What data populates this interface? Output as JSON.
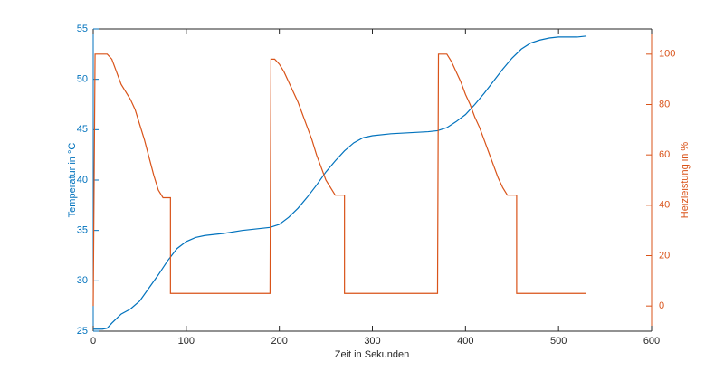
{
  "chart_data": {
    "type": "line",
    "xlabel": "Zeit in Sekunden",
    "ylabel": "Temperatur in °C",
    "y2label": "Heizleistung in %",
    "xlim": [
      0,
      600
    ],
    "xticks": [
      0,
      100,
      200,
      300,
      400,
      500,
      600
    ],
    "ylim": [
      25,
      55
    ],
    "yticks": [
      25,
      30,
      35,
      40,
      45,
      50,
      55
    ],
    "y2lim": [
      -10,
      110
    ],
    "y2ticks": [
      0,
      20,
      40,
      60,
      80,
      100
    ],
    "grid": false,
    "series": [
      {
        "color": "#0072BD",
        "x": [
          0,
          10,
          15,
          20,
          30,
          40,
          50,
          60,
          70,
          80,
          90,
          100,
          110,
          120,
          140,
          160,
          180,
          190,
          200,
          210,
          220,
          230,
          240,
          250,
          260,
          270,
          280,
          290,
          300,
          320,
          340,
          360,
          370,
          380,
          390,
          400,
          410,
          420,
          430,
          440,
          450,
          460,
          470,
          480,
          490,
          500,
          520,
          530
        ],
        "values": [
          25.2,
          25.2,
          25.3,
          25.8,
          26.7,
          27.2,
          28.0,
          29.3,
          30.6,
          32.0,
          33.2,
          33.9,
          34.3,
          34.5,
          34.7,
          35.0,
          35.2,
          35.3,
          35.6,
          36.3,
          37.2,
          38.3,
          39.5,
          40.8,
          41.9,
          42.9,
          43.7,
          44.2,
          44.4,
          44.6,
          44.7,
          44.8,
          44.9,
          45.2,
          45.8,
          46.5,
          47.5,
          48.6,
          49.8,
          51.0,
          52.1,
          53.0,
          53.6,
          53.9,
          54.1,
          54.2,
          54.2,
          54.3
        ]
      },
      {
        "color": "#D95319",
        "axis": "y2",
        "x": [
          0,
          2,
          15,
          20,
          25,
          30,
          35,
          40,
          45,
          50,
          55,
          60,
          65,
          70,
          75,
          83,
          83,
          190,
          191,
          195,
          200,
          205,
          210,
          215,
          220,
          225,
          230,
          235,
          240,
          245,
          250,
          255,
          260,
          270,
          270,
          370,
          371,
          380,
          385,
          390,
          395,
          400,
          405,
          410,
          415,
          420,
          425,
          430,
          435,
          440,
          445,
          455,
          455,
          530
        ],
        "values": [
          0,
          100,
          100,
          98,
          93,
          88,
          85,
          82,
          78,
          72,
          66,
          59,
          52,
          46,
          43,
          43,
          5,
          5,
          98,
          98,
          96,
          93,
          89,
          85,
          81,
          76,
          71,
          66,
          60,
          55,
          50,
          47,
          44,
          44,
          5,
          5,
          100,
          100,
          97,
          93,
          89,
          84,
          80,
          75,
          71,
          66,
          61,
          56,
          51,
          47,
          44,
          44,
          5,
          5
        ]
      }
    ]
  }
}
